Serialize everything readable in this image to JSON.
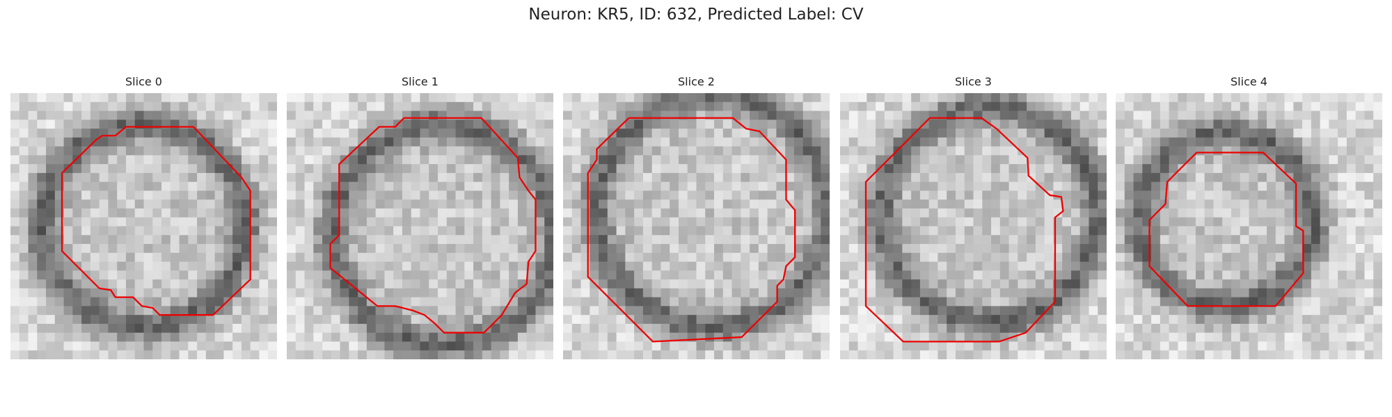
{
  "title": "Neuron: KR5, ID: 632, Predicted Label: CV",
  "panels": [
    {
      "title": "Slice 0"
    },
    {
      "title": "Slice 1"
    },
    {
      "title": "Slice 2"
    },
    {
      "title": "Slice 3"
    },
    {
      "title": "Slice 4"
    }
  ]
}
